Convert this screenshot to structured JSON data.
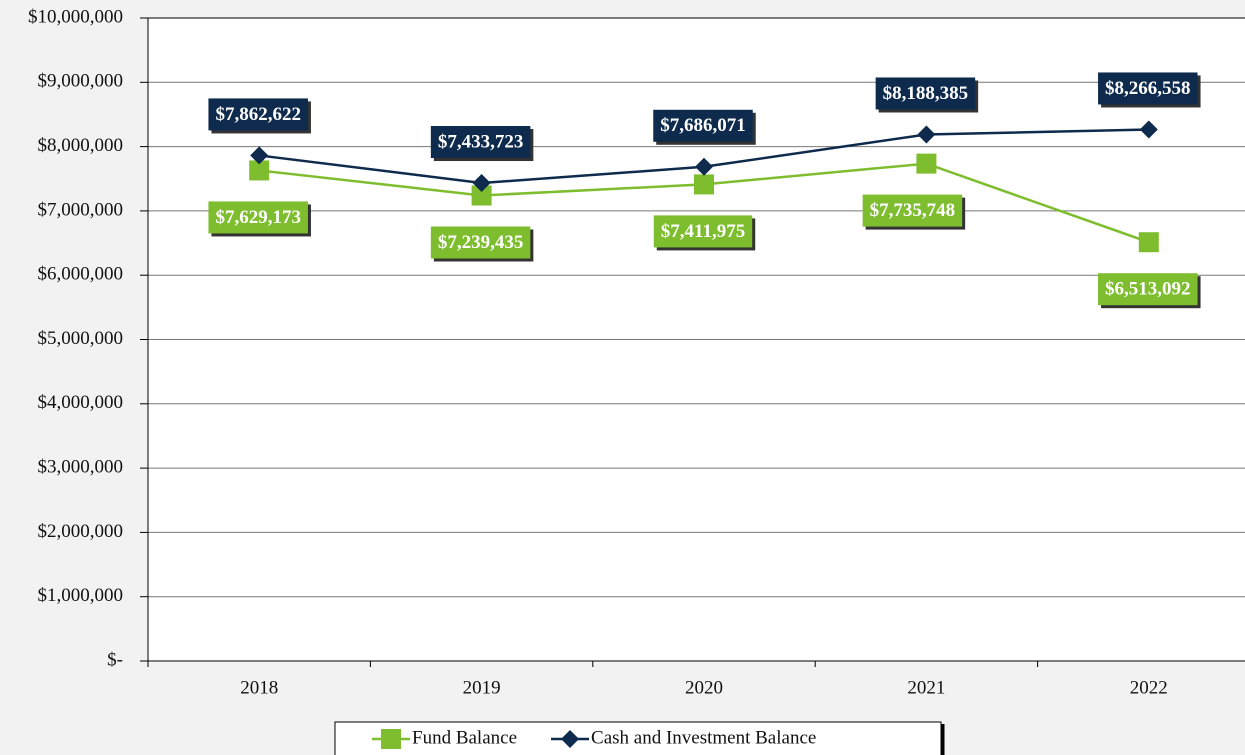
{
  "chart_data": {
    "type": "line",
    "categories": [
      "2018",
      "2019",
      "2020",
      "2021",
      "2022"
    ],
    "series": [
      {
        "name": "Fund Balance",
        "color": "#7dbd2e",
        "marker": "square",
        "values": [
          7629173,
          7239435,
          7411975,
          7735748,
          6513092
        ],
        "value_labels": [
          "$7,629,173",
          "$7,239,435",
          "$7,411,975",
          "$7,735,748",
          "$6,513,092"
        ]
      },
      {
        "name": "Cash and Investment Balance",
        "color": "#0e2a4c",
        "marker": "diamond",
        "values": [
          7862622,
          7433723,
          7686071,
          8188385,
          8266558
        ],
        "value_labels": [
          "$7,862,622",
          "$7,433,723",
          "$7,686,071",
          "$8,188,385",
          "$8,266,558"
        ]
      }
    ],
    "ylim": [
      0,
      10000000
    ],
    "yticks": [
      {
        "value": 0,
        "label": "$-"
      },
      {
        "value": 1000000,
        "label": "$1,000,000"
      },
      {
        "value": 2000000,
        "label": "$2,000,000"
      },
      {
        "value": 3000000,
        "label": "$3,000,000"
      },
      {
        "value": 4000000,
        "label": "$4,000,000"
      },
      {
        "value": 5000000,
        "label": "$5,000,000"
      },
      {
        "value": 6000000,
        "label": "$6,000,000"
      },
      {
        "value": 7000000,
        "label": "$7,000,000"
      },
      {
        "value": 8000000,
        "label": "$8,000,000"
      },
      {
        "value": 9000000,
        "label": "$9,000,000"
      },
      {
        "value": 10000000,
        "label": "$10,000,000"
      }
    ],
    "grid": true,
    "legend": "bottom"
  }
}
